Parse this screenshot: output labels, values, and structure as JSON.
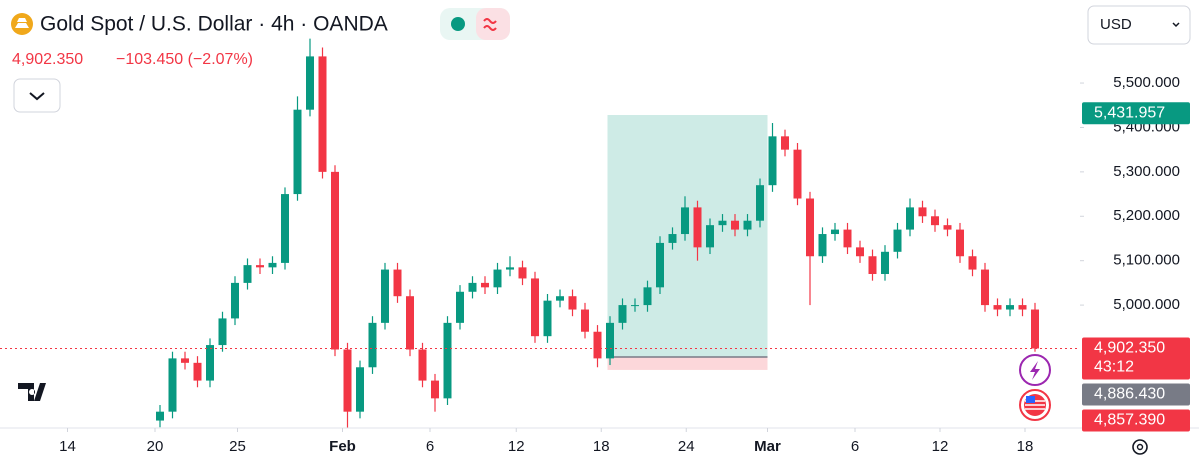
{
  "chart_data": {
    "type": "candlestick",
    "title": "Gold Spot / U.S. Dollar · 4h · OANDA",
    "last_price": "4,902.350",
    "change": "−103.450 (−2.07%)",
    "currency": "USD",
    "up_color": "#089981",
    "down_color": "#f23645",
    "grid": false,
    "candles": [
      [
        4740,
        4775,
        4725,
        4760
      ],
      [
        4760,
        4895,
        4745,
        4880
      ],
      [
        4880,
        4895,
        4855,
        4870
      ],
      [
        4870,
        4885,
        4815,
        4830
      ],
      [
        4830,
        4925,
        4815,
        4910
      ],
      [
        4910,
        4985,
        4895,
        4970
      ],
      [
        4970,
        5065,
        4955,
        5050
      ],
      [
        5050,
        5105,
        5035,
        5090
      ],
      [
        5090,
        5105,
        5070,
        5085
      ],
      [
        5085,
        5110,
        5070,
        5095
      ],
      [
        5095,
        5265,
        5080,
        5250
      ],
      [
        5250,
        5470,
        5235,
        5440
      ],
      [
        5440,
        5600,
        5425,
        5560
      ],
      [
        5560,
        5580,
        5285,
        5300
      ],
      [
        5300,
        5315,
        4885,
        4900
      ],
      [
        4900,
        4915,
        4720,
        4760
      ],
      [
        4760,
        4875,
        4745,
        4860
      ],
      [
        4860,
        4975,
        4845,
        4960
      ],
      [
        4960,
        5095,
        4945,
        5080
      ],
      [
        5080,
        5095,
        5005,
        5020
      ],
      [
        5020,
        5035,
        4885,
        4900
      ],
      [
        4900,
        4915,
        4815,
        4830
      ],
      [
        4830,
        4845,
        4760,
        4790
      ],
      [
        4790,
        4975,
        4775,
        4960
      ],
      [
        4960,
        5045,
        4945,
        5030
      ],
      [
        5030,
        5065,
        5015,
        5050
      ],
      [
        5050,
        5065,
        5025,
        5040
      ],
      [
        5040,
        5095,
        5025,
        5080
      ],
      [
        5080,
        5110,
        5065,
        5085
      ],
      [
        5085,
        5100,
        5045,
        5060
      ],
      [
        5060,
        5075,
        4915,
        4930
      ],
      [
        4930,
        5025,
        4915,
        5010
      ],
      [
        5010,
        5035,
        4995,
        5020
      ],
      [
        5020,
        5035,
        4975,
        4990
      ],
      [
        4990,
        5005,
        4925,
        4940
      ],
      [
        4940,
        4955,
        4860,
        4880
      ],
      [
        4880,
        4975,
        4865,
        4960
      ],
      [
        4960,
        5015,
        4945,
        5000
      ],
      [
        5000,
        5015,
        4985,
        5000
      ],
      [
        5000,
        5055,
        4985,
        5040
      ],
      [
        5040,
        5155,
        5025,
        5140
      ],
      [
        5140,
        5175,
        5125,
        5160
      ],
      [
        5160,
        5245,
        5145,
        5220
      ],
      [
        5220,
        5235,
        5100,
        5130
      ],
      [
        5130,
        5195,
        5115,
        5180
      ],
      [
        5180,
        5205,
        5165,
        5190
      ],
      [
        5190,
        5205,
        5155,
        5170
      ],
      [
        5170,
        5205,
        5155,
        5190
      ],
      [
        5190,
        5285,
        5175,
        5270
      ],
      [
        5270,
        5410,
        5255,
        5380
      ],
      [
        5380,
        5395,
        5335,
        5350
      ],
      [
        5350,
        5365,
        5225,
        5240
      ],
      [
        5240,
        5255,
        5000,
        5110
      ],
      [
        5110,
        5175,
        5095,
        5160
      ],
      [
        5160,
        5185,
        5145,
        5170
      ],
      [
        5170,
        5185,
        5115,
        5130
      ],
      [
        5130,
        5145,
        5095,
        5110
      ],
      [
        5110,
        5125,
        5055,
        5070
      ],
      [
        5070,
        5135,
        5055,
        5120
      ],
      [
        5120,
        5185,
        5105,
        5170
      ],
      [
        5170,
        5240,
        5155,
        5220
      ],
      [
        5220,
        5235,
        5185,
        5200
      ],
      [
        5200,
        5215,
        5165,
        5180
      ],
      [
        5180,
        5195,
        5155,
        5170
      ],
      [
        5170,
        5185,
        5095,
        5110
      ],
      [
        5110,
        5125,
        5065,
        5080
      ],
      [
        5080,
        5095,
        4985,
        5000
      ],
      [
        5000,
        5015,
        4975,
        4990
      ],
      [
        4990,
        5015,
        4975,
        5000
      ],
      [
        5000,
        5015,
        4975,
        4990
      ],
      [
        4990,
        5005,
        4895,
        4902.35
      ]
    ],
    "xlim": [
      -12.8,
      73.6
    ],
    "xticks": [
      {
        "value": -7.4,
        "label": "14"
      },
      {
        "value": -0.4,
        "label": "20"
      },
      {
        "value": 6.2,
        "label": "25"
      },
      {
        "value": 14.6,
        "label": "Feb"
      },
      {
        "value": 21.6,
        "label": "6"
      },
      {
        "value": 28.5,
        "label": "12"
      },
      {
        "value": 35.3,
        "label": "18"
      },
      {
        "value": 42.1,
        "label": "24"
      },
      {
        "value": 48.6,
        "label": "Mar"
      },
      {
        "value": 55.6,
        "label": "6"
      },
      {
        "value": 62.4,
        "label": "12"
      },
      {
        "value": 69.2,
        "label": "18"
      }
    ],
    "ylim": [
      4730,
      5687
    ],
    "yticks": [
      {
        "value": 5000,
        "label": "5,000.000"
      },
      {
        "value": 5100,
        "label": "5,100.000"
      },
      {
        "value": 5200,
        "label": "5,200.000"
      },
      {
        "value": 5300,
        "label": "5,300.000"
      },
      {
        "value": 5400,
        "label": "5,400.000"
      },
      {
        "value": 5500,
        "label": "5,500.000"
      }
    ],
    "position": {
      "x": [
        35.8,
        48.6
      ],
      "target": 5428,
      "entry": 4883,
      "stop": 4854
    },
    "price_tags": [
      {
        "value": 5431.957,
        "label": "5,431.957",
        "color": "#089981"
      },
      {
        "value": 4902.35,
        "label": "4,902.350",
        "sub": "43:12",
        "color": "#f23645"
      },
      {
        "value": 4886.43,
        "label": "4,886.430",
        "color": "#787b86"
      },
      {
        "value": 4857.39,
        "label": "4,857.390",
        "color": "#f23645"
      }
    ]
  }
}
